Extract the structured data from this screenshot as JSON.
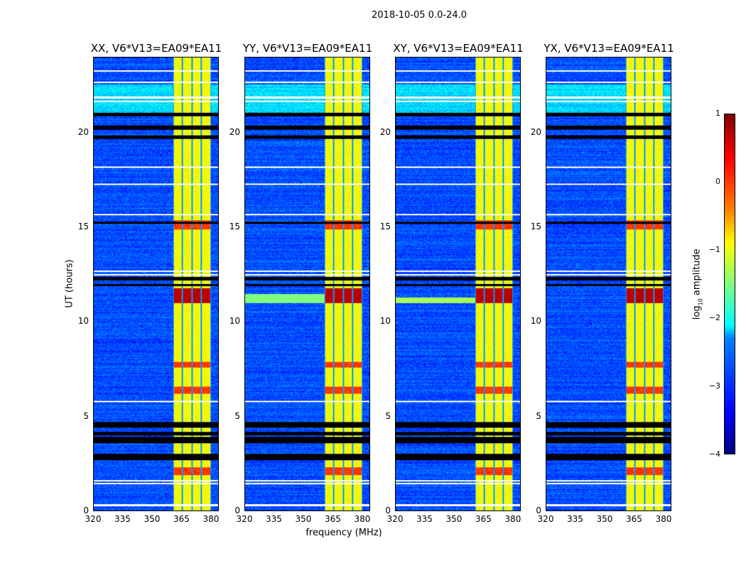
{
  "suptitle": "2018-10-05 0.0-24.0",
  "chart_data": {
    "type": "heatmap",
    "xlabel": "frequency (MHz)",
    "ylabel": "UT (hours)",
    "xlim": [
      320,
      384
    ],
    "ylim": [
      0,
      24
    ],
    "xticks": [
      "320",
      "335",
      "350",
      "365",
      "380"
    ],
    "xtick_values": [
      320,
      335,
      350,
      365,
      380
    ],
    "yticks": [
      "0",
      "5",
      "10",
      "15",
      "20"
    ],
    "ytick_values": [
      0,
      5,
      10,
      15,
      20
    ],
    "panels": [
      {
        "title": "XX, V6*V13=EA09*EA11"
      },
      {
        "title": "YY, V6*V13=EA09*EA11"
      },
      {
        "title": "XY, V6*V13=EA09*EA11"
      },
      {
        "title": "YX, V6*V13=EA09*EA11"
      }
    ],
    "colorbar": {
      "label_prefix": "log",
      "label_sub": "10",
      "label_suffix": " amplitude",
      "range": [
        -4,
        1
      ],
      "ticks": [
        "1",
        "0",
        "−1",
        "−2",
        "−3",
        "−4"
      ],
      "tick_values": [
        1,
        0,
        -1,
        -2,
        -3,
        -4
      ],
      "colormap": "jet"
    },
    "background_level": -3.0,
    "bright_band_MHz": [
      360.5,
      380.2
    ],
    "subband_edges_MHz": [
      360.5,
      365.4,
      370.3,
      375.2,
      380.2
    ],
    "hot_intervals_hours": [
      [
        11.0,
        11.8
      ],
      [
        14.9,
        15.4
      ],
      [
        7.6,
        7.9
      ],
      [
        1.9,
        2.3
      ],
      [
        6.2,
        6.6
      ]
    ],
    "flagged_white_hours": [
      23.3,
      22.7,
      21.9,
      21.7,
      18.2,
      17.3,
      15.7,
      12.7,
      12.5,
      5.8,
      1.6,
      1.45,
      0.3
    ],
    "flagged_black_hours": [
      [
        20.9,
        21.1
      ],
      [
        20.2,
        20.4
      ],
      [
        19.7,
        19.9
      ],
      [
        15.2,
        15.3
      ],
      [
        12.2,
        12.4
      ],
      [
        11.9,
        12.0
      ],
      [
        4.4,
        4.7
      ],
      [
        4.0,
        4.2
      ],
      [
        3.6,
        3.9
      ],
      [
        2.7,
        3.0
      ]
    ]
  }
}
